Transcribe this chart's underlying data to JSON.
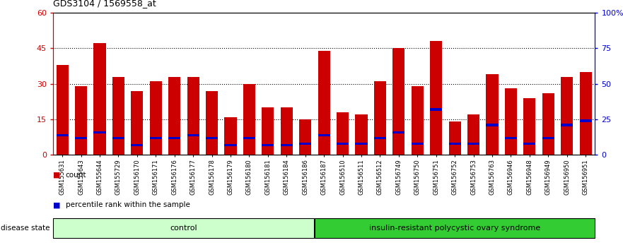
{
  "title": "GDS3104 / 1569558_at",
  "samples": [
    "GSM155631",
    "GSM155643",
    "GSM155644",
    "GSM155729",
    "GSM156170",
    "GSM156171",
    "GSM156176",
    "GSM156177",
    "GSM156178",
    "GSM156179",
    "GSM156180",
    "GSM156181",
    "GSM156184",
    "GSM156186",
    "GSM156187",
    "GSM156510",
    "GSM156511",
    "GSM156512",
    "GSM156749",
    "GSM156750",
    "GSM156751",
    "GSM156752",
    "GSM156753",
    "GSM156763",
    "GSM156946",
    "GSM156948",
    "GSM156949",
    "GSM156950",
    "GSM156951"
  ],
  "count_values": [
    38,
    29,
    47,
    33,
    27,
    31,
    33,
    33,
    27,
    16,
    30,
    20,
    20,
    15,
    44,
    18,
    17,
    31,
    45,
    29,
    48,
    14,
    17,
    34,
    28,
    24,
    26,
    33,
    35
  ],
  "percentile_values": [
    14,
    12,
    16,
    12,
    7,
    12,
    12,
    14,
    12,
    7,
    12,
    7,
    7,
    8,
    14,
    8,
    8,
    12,
    16,
    8,
    32,
    8,
    8,
    21,
    12,
    8,
    12,
    21,
    24
  ],
  "control_count": 14,
  "disease_count": 15,
  "bar_color": "#CC0000",
  "percentile_color": "#0000CC",
  "control_group_label": "control",
  "disease_group_label": "insulin-resistant polycystic ovary syndrome",
  "control_bg": "#CCFFCC",
  "disease_bg": "#33CC33",
  "ylim_left": [
    0,
    60
  ],
  "ylim_right": [
    0,
    100
  ],
  "yticks_left": [
    0,
    15,
    30,
    45,
    60
  ],
  "yticks_right": [
    0,
    25,
    50,
    75,
    100
  ],
  "ytick_labels_left": [
    "0",
    "15",
    "30",
    "45",
    "60"
  ],
  "ytick_labels_right": [
    "0",
    "25",
    "50",
    "75",
    "100%"
  ],
  "left_axis_color": "#CC0000",
  "right_axis_color": "#0000CC",
  "bar_width": 0.65
}
